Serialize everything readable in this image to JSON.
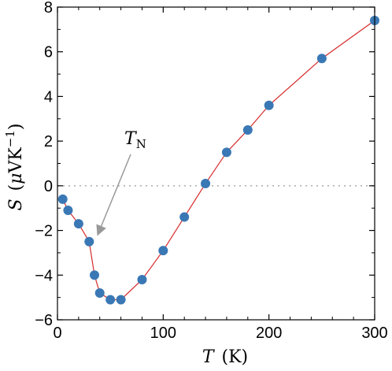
{
  "chart_data": {
    "type": "scatter",
    "title": "",
    "xlabel": {
      "symbol": "T",
      "unit": "(K)"
    },
    "ylabel": {
      "symbol": "S",
      "unit_open": "(",
      "mu": "μ",
      "unit_base": "VK",
      "unit_exp": "−1",
      "unit_close": ")"
    },
    "xlim": [
      0,
      300
    ],
    "ylim": [
      -6,
      8
    ],
    "x_ticks": [
      0,
      100,
      200,
      300
    ],
    "y_ticks": [
      -6,
      -4,
      -2,
      0,
      2,
      4,
      6,
      8
    ],
    "x_tick_labels": [
      "0",
      "100",
      "200",
      "300"
    ],
    "y_tick_labels": [
      "−6",
      "−4",
      "−2",
      "0",
      "2",
      "4",
      "6",
      "8"
    ],
    "grid": false,
    "zero_line": "dotted",
    "series": [
      {
        "marker_color": "#3a78b5",
        "line_color": "#d62a2a",
        "x": [
          5,
          10,
          20,
          30,
          35,
          40,
          50,
          60,
          80,
          100,
          120,
          140,
          160,
          180,
          200,
          250,
          300
        ],
        "y": [
          -0.6,
          -1.1,
          -1.7,
          -2.5,
          -4.0,
          -4.8,
          -5.1,
          -5.1,
          -4.2,
          -2.9,
          -1.4,
          0.1,
          1.5,
          2.5,
          3.6,
          5.7,
          7.4
        ]
      }
    ],
    "annotations": [
      {
        "symbol": "T",
        "subscript": "N",
        "arrow_to": {
          "x": 38,
          "y": -2.2
        },
        "arrow_color": "#999999"
      }
    ]
  }
}
